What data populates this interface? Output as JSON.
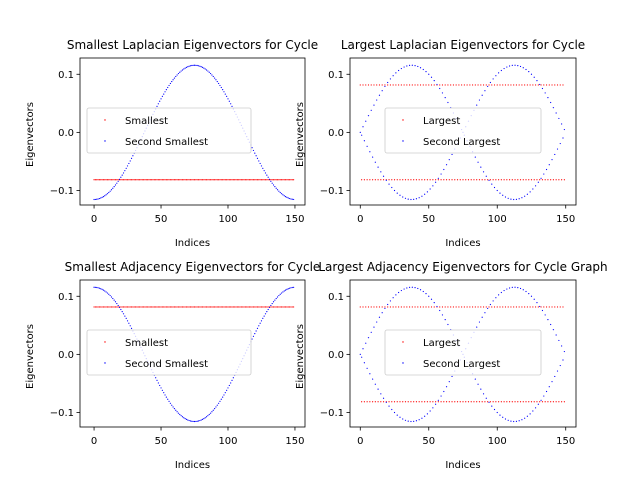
{
  "chart_data": [
    {
      "type": "scatter",
      "title": "Smallest Laplacian Eigenvectors for Cycle",
      "xlabel": "Indices",
      "ylabel": "Eigenvectors",
      "xlim": [
        -10.5,
        157.5
      ],
      "ylim": [
        -0.125,
        0.128
      ],
      "xticks": [
        0,
        50,
        100,
        150
      ],
      "yticks": [
        -0.1,
        0.0,
        0.1
      ],
      "ytick_labels": [
        "−0.1",
        "0.0",
        "0.1"
      ],
      "grid": false,
      "legend_position": "center-left",
      "n_points": 150,
      "series": [
        {
          "name": "Smallest",
          "color": "#ff0000",
          "form": "constant",
          "value": -0.0816
        },
        {
          "name": "Second Smallest",
          "color": "#0000ff",
          "form": "cos",
          "amplitude": 0.1155,
          "phase": 3.14159
        }
      ]
    },
    {
      "type": "scatter",
      "title": "Largest Laplacian Eigenvectors for Cycle",
      "xlabel": "Indices",
      "ylabel": "Eigenvectors",
      "xlim": [
        -7.5,
        157.5
      ],
      "ylim": [
        -0.125,
        0.128
      ],
      "xticks": [
        0,
        50,
        100,
        150
      ],
      "yticks": [
        -0.1,
        0.0,
        0.1
      ],
      "ytick_labels": [
        "−0.1",
        "0.0",
        "0.1"
      ],
      "grid": false,
      "legend_position": "center",
      "n_points": 150,
      "series": [
        {
          "name": "Largest",
          "color": "#ff0000",
          "form": "alternating",
          "value": 0.0816
        },
        {
          "name": "Second Largest",
          "color": "#0000ff",
          "form": "alt-sin",
          "amplitude": 0.1155
        }
      ]
    },
    {
      "type": "scatter",
      "title": "Smallest Adjacency Eigenvectors for Cycle",
      "xlabel": "Indices",
      "ylabel": "Eigenvectors",
      "xlim": [
        -10.5,
        157.5
      ],
      "ylim": [
        -0.125,
        0.128
      ],
      "xticks": [
        0,
        50,
        100,
        150
      ],
      "yticks": [
        -0.1,
        0.0,
        0.1
      ],
      "ytick_labels": [
        "−0.1",
        "0.0",
        "0.1"
      ],
      "grid": false,
      "legend_position": "center-left",
      "n_points": 150,
      "series": [
        {
          "name": "Smallest",
          "color": "#ff0000",
          "form": "constant",
          "value": 0.0816
        },
        {
          "name": "Second Smallest",
          "color": "#0000ff",
          "form": "cos",
          "amplitude": 0.1155,
          "phase": 0
        }
      ]
    },
    {
      "type": "scatter",
      "title": "Largest Adjacency Eigenvectors for Cycle Graph",
      "xlabel": "Indices",
      "ylabel": "Eigenvectors",
      "xlim": [
        -7.5,
        157.5
      ],
      "ylim": [
        -0.125,
        0.128
      ],
      "xticks": [
        0,
        50,
        100,
        150
      ],
      "yticks": [
        -0.1,
        0.0,
        0.1
      ],
      "ytick_labels": [
        "−0.1",
        "0.0",
        "0.1"
      ],
      "grid": false,
      "legend_position": "center",
      "n_points": 150,
      "series": [
        {
          "name": "Largest",
          "color": "#ff0000",
          "form": "alternating",
          "value": 0.0816
        },
        {
          "name": "Second Largest",
          "color": "#0000ff",
          "form": "alt-sin",
          "amplitude": 0.1155
        }
      ]
    }
  ]
}
